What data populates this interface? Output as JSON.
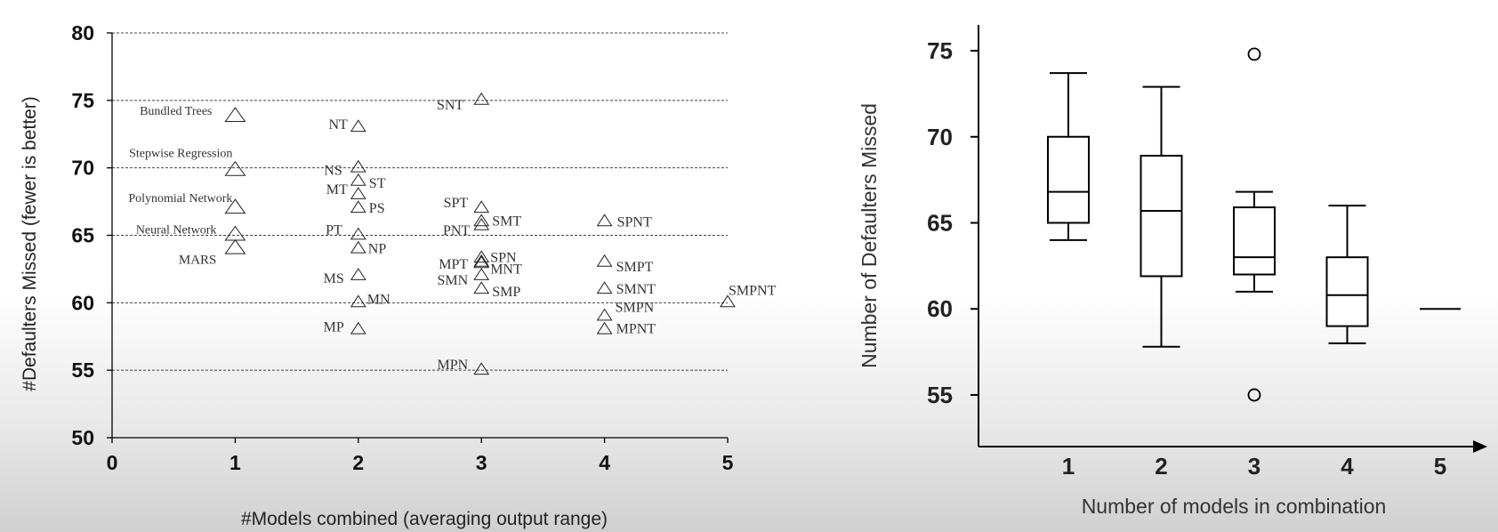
{
  "chart_data": [
    {
      "type": "scatter",
      "title": "",
      "xlabel": "#Models combined (averaging output range)",
      "ylabel": "#Defaulters Missed (fewer is better)",
      "xlim": [
        0,
        5
      ],
      "ylim": [
        50,
        80
      ],
      "x_ticks": [
        "0",
        "1",
        "2",
        "3",
        "4",
        "5"
      ],
      "y_ticks": [
        "50",
        "55",
        "60",
        "65",
        "70",
        "75",
        "80"
      ],
      "grid": "horizontal-dashed",
      "marker": "triangle",
      "points": [
        {
          "x": 1,
          "y": 73.8,
          "label": "Bundled Trees"
        },
        {
          "x": 1,
          "y": 69.8,
          "label": "Stepwise Regression"
        },
        {
          "x": 1,
          "y": 67,
          "label": "Polynomial Network"
        },
        {
          "x": 1,
          "y": 65,
          "label": "Neural Network"
        },
        {
          "x": 1,
          "y": 64,
          "label": "MARS"
        },
        {
          "x": 2,
          "y": 73,
          "label": "NT"
        },
        {
          "x": 2,
          "y": 70,
          "label": "NS"
        },
        {
          "x": 2,
          "y": 69,
          "label": "ST"
        },
        {
          "x": 2,
          "y": 68,
          "label": "MT"
        },
        {
          "x": 2,
          "y": 67,
          "label": "PS"
        },
        {
          "x": 2,
          "y": 65,
          "label": "PT"
        },
        {
          "x": 2,
          "y": 64,
          "label": "NP"
        },
        {
          "x": 2,
          "y": 62,
          "label": "MS"
        },
        {
          "x": 2,
          "y": 60,
          "label": "MN"
        },
        {
          "x": 2,
          "y": 58,
          "label": "MP"
        },
        {
          "x": 3,
          "y": 75,
          "label": "SNT"
        },
        {
          "x": 3,
          "y": 67,
          "label": "SPT"
        },
        {
          "x": 3,
          "y": 66,
          "label": "SMT"
        },
        {
          "x": 3,
          "y": 65.7,
          "label": "PNT"
        },
        {
          "x": 3,
          "y": 63.3,
          "label": "SPN"
        },
        {
          "x": 3,
          "y": 63,
          "label": "MPT"
        },
        {
          "x": 3,
          "y": 62.9,
          "label": "MNT"
        },
        {
          "x": 3,
          "y": 62,
          "label": "SMN"
        },
        {
          "x": 3,
          "y": 61,
          "label": "SMP"
        },
        {
          "x": 3,
          "y": 55,
          "label": "MPN"
        },
        {
          "x": 4,
          "y": 66,
          "label": "SPNT"
        },
        {
          "x": 4,
          "y": 63,
          "label": "SMPT"
        },
        {
          "x": 4,
          "y": 61,
          "label": "SMNT"
        },
        {
          "x": 4,
          "y": 59,
          "label": "SMPN"
        },
        {
          "x": 4,
          "y": 58,
          "label": "MPNT"
        },
        {
          "x": 5,
          "y": 60,
          "label": "SMPNT"
        }
      ]
    },
    {
      "type": "box",
      "title": "",
      "xlabel": "Number of models in combination",
      "ylabel": "Number of Defaulters Missed",
      "ylim": [
        52,
        76.5
      ],
      "y_ticks": [
        "55",
        "60",
        "65",
        "70",
        "75"
      ],
      "categories": [
        "1",
        "2",
        "3",
        "4",
        "5"
      ],
      "boxes": [
        {
          "category": "1",
          "whisker_low": 64,
          "q1": 65,
          "median": 66.8,
          "q3": 70,
          "whisker_high": 73.7,
          "outliers": []
        },
        {
          "category": "2",
          "whisker_low": 57.8,
          "q1": 61.9,
          "median": 65.7,
          "q3": 68.9,
          "whisker_high": 72.9,
          "outliers": []
        },
        {
          "category": "3",
          "whisker_low": 61,
          "q1": 62,
          "median": 63,
          "q3": 65.9,
          "whisker_high": 66.8,
          "outliers": [
            74.8,
            55
          ]
        },
        {
          "category": "4",
          "whisker_low": 58,
          "q1": 59,
          "median": 60.8,
          "q3": 63,
          "whisker_high": 66,
          "outliers": []
        },
        {
          "category": "5",
          "whisker_low": 60,
          "q1": 60,
          "median": 60,
          "q3": 60,
          "whisker_high": 60,
          "outliers": []
        }
      ]
    }
  ]
}
